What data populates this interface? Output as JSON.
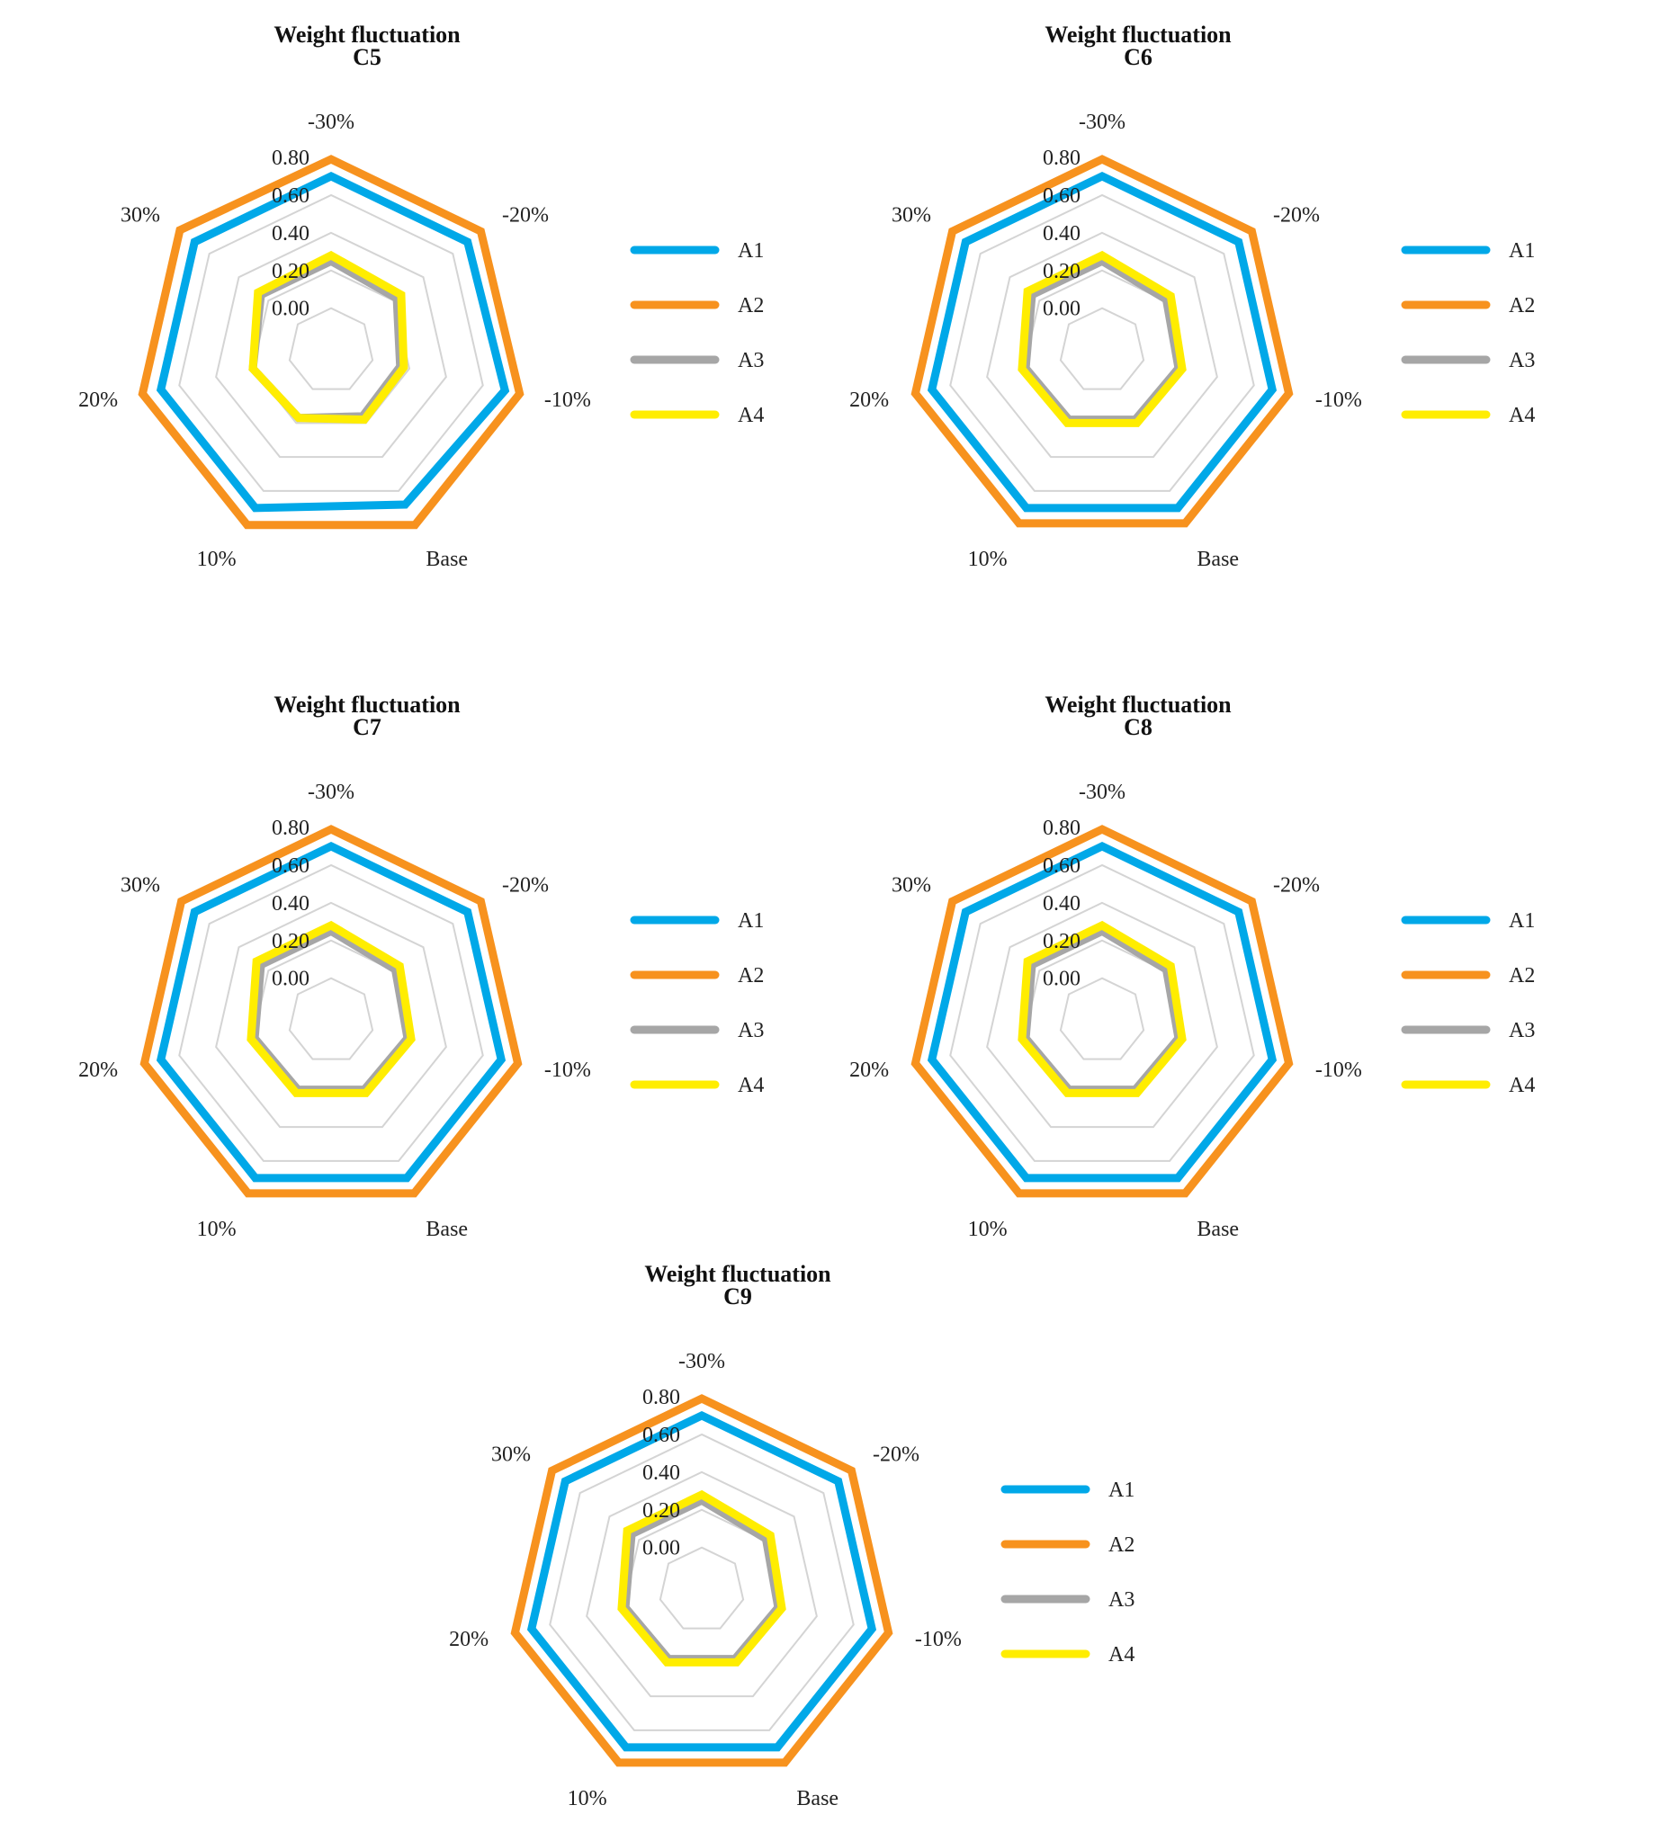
{
  "chart_data": [
    {
      "type": "radar",
      "title": "Weight fluctuation",
      "subtitle": "C5",
      "axes": [
        "-30%",
        "-20%",
        "-10%",
        "Base",
        "10%",
        "20%",
        "30%"
      ],
      "ticks": [
        "0.00",
        "0.20",
        "0.40",
        "0.60",
        "0.80"
      ],
      "range": [
        0,
        0.8
      ],
      "grid": true,
      "legend": "right",
      "series": [
        {
          "name": "A1",
          "color": "#00A8E8",
          "values": [
            0.7,
            0.7,
            0.72,
            0.68,
            0.7,
            0.7,
            0.7
          ]
        },
        {
          "name": "A2",
          "color": "#F7921E",
          "values": [
            0.79,
            0.79,
            0.8,
            0.8,
            0.8,
            0.8,
            0.8
          ]
        },
        {
          "name": "A3",
          "color": "#A6A6A6",
          "values": [
            0.25,
            0.22,
            0.15,
            0.16,
            0.17,
            0.2,
            0.25
          ]
        },
        {
          "name": "A4",
          "color": "#FFED00",
          "values": [
            0.28,
            0.25,
            0.17,
            0.18,
            0.17,
            0.2,
            0.27
          ]
        }
      ]
    },
    {
      "type": "radar",
      "title": "Weight fluctuation",
      "subtitle": "C6",
      "axes": [
        "-30%",
        "-20%",
        "-10%",
        "Base",
        "10%",
        "20%",
        "30%"
      ],
      "ticks": [
        "0.00",
        "0.20",
        "0.40",
        "0.60",
        "0.80"
      ],
      "range": [
        0,
        0.8
      ],
      "grid": true,
      "legend": "right",
      "series": [
        {
          "name": "A1",
          "color": "#00A8E8",
          "values": [
            0.7,
            0.7,
            0.7,
            0.7,
            0.7,
            0.7,
            0.7
          ]
        },
        {
          "name": "A2",
          "color": "#F7921E",
          "values": [
            0.79,
            0.79,
            0.79,
            0.79,
            0.79,
            0.79,
            0.79
          ]
        },
        {
          "name": "A3",
          "color": "#A6A6A6",
          "values": [
            0.25,
            0.21,
            0.19,
            0.18,
            0.18,
            0.19,
            0.25
          ]
        },
        {
          "name": "A4",
          "color": "#FFED00",
          "values": [
            0.28,
            0.24,
            0.21,
            0.2,
            0.2,
            0.21,
            0.28
          ]
        }
      ]
    },
    {
      "type": "radar",
      "title": "Weight fluctuation",
      "subtitle": "C7",
      "axes": [
        "-30%",
        "-20%",
        "-10%",
        "Base",
        "10%",
        "20%",
        "30%"
      ],
      "ticks": [
        "0.00",
        "0.20",
        "0.40",
        "0.60",
        "0.80"
      ],
      "range": [
        0,
        0.8
      ],
      "grid": true,
      "legend": "right",
      "series": [
        {
          "name": "A1",
          "color": "#00A8E8",
          "values": [
            0.7,
            0.7,
            0.7,
            0.7,
            0.7,
            0.7,
            0.7
          ]
        },
        {
          "name": "A2",
          "color": "#F7921E",
          "values": [
            0.79,
            0.79,
            0.79,
            0.79,
            0.79,
            0.79,
            0.79
          ]
        },
        {
          "name": "A3",
          "color": "#A6A6A6",
          "values": [
            0.25,
            0.21,
            0.19,
            0.18,
            0.18,
            0.19,
            0.25
          ]
        },
        {
          "name": "A4",
          "color": "#FFED00",
          "values": [
            0.28,
            0.24,
            0.21,
            0.2,
            0.2,
            0.21,
            0.28
          ]
        }
      ]
    },
    {
      "type": "radar",
      "title": "Weight fluctuation",
      "subtitle": "C8",
      "axes": [
        "-30%",
        "-20%",
        "-10%",
        "Base",
        "10%",
        "20%",
        "30%"
      ],
      "ticks": [
        "0.00",
        "0.20",
        "0.40",
        "0.60",
        "0.80"
      ],
      "range": [
        0,
        0.8
      ],
      "grid": true,
      "legend": "right",
      "series": [
        {
          "name": "A1",
          "color": "#00A8E8",
          "values": [
            0.7,
            0.7,
            0.7,
            0.7,
            0.7,
            0.7,
            0.7
          ]
        },
        {
          "name": "A2",
          "color": "#F7921E",
          "values": [
            0.79,
            0.79,
            0.79,
            0.79,
            0.79,
            0.79,
            0.79
          ]
        },
        {
          "name": "A3",
          "color": "#A6A6A6",
          "values": [
            0.25,
            0.21,
            0.19,
            0.18,
            0.18,
            0.19,
            0.25
          ]
        },
        {
          "name": "A4",
          "color": "#FFED00",
          "values": [
            0.28,
            0.24,
            0.21,
            0.2,
            0.2,
            0.21,
            0.28
          ]
        }
      ]
    },
    {
      "type": "radar",
      "title": "Weight fluctuation",
      "subtitle": "C9",
      "axes": [
        "-30%",
        "-20%",
        "-10%",
        "Base",
        "10%",
        "20%",
        "30%"
      ],
      "ticks": [
        "0.00",
        "0.20",
        "0.40",
        "0.60",
        "0.80"
      ],
      "range": [
        0,
        0.8
      ],
      "grid": true,
      "legend": "right",
      "series": [
        {
          "name": "A1",
          "color": "#00A8E8",
          "values": [
            0.7,
            0.7,
            0.7,
            0.7,
            0.7,
            0.7,
            0.7
          ]
        },
        {
          "name": "A2",
          "color": "#F7921E",
          "values": [
            0.79,
            0.79,
            0.79,
            0.79,
            0.79,
            0.79,
            0.79
          ]
        },
        {
          "name": "A3",
          "color": "#A6A6A6",
          "values": [
            0.25,
            0.21,
            0.19,
            0.18,
            0.18,
            0.19,
            0.25
          ]
        },
        {
          "name": "A4",
          "color": "#FFED00",
          "values": [
            0.28,
            0.24,
            0.21,
            0.2,
            0.2,
            0.21,
            0.28
          ]
        }
      ]
    }
  ]
}
